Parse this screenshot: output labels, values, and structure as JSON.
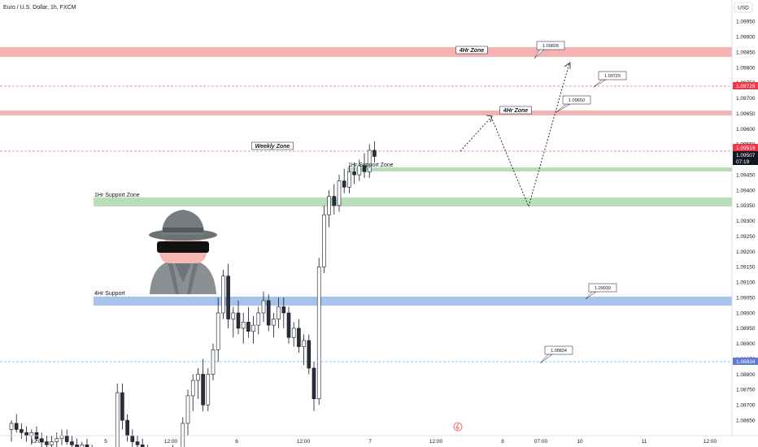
{
  "header": {
    "title": "Euro / U.S. Dollar, 1h, FXCM",
    "currency_button": "USD"
  },
  "colors": {
    "bull": "#ffffff",
    "bear": "#2a2e39",
    "wick": "#131722",
    "red_zone": "#ef9a9a",
    "green_zone": "#a5d6a7",
    "blue_zone": "#90b4e6",
    "red_line": "#e57373",
    "blue_line": "#64b5f6",
    "tag_red": "#f23645",
    "tag_blue": "#5b7bd5",
    "tag_black": "#131722"
  },
  "chart_data": {
    "type": "candlestick",
    "symbol": "Euro / U.S. Dollar, 1h, FXCM",
    "ylim": [
      1.086,
      1.1002
    ],
    "y_ticks": [
      "1.09950",
      "1.09900",
      "1.09850",
      "1.09800",
      "1.09750",
      "1.09700",
      "1.09650",
      "1.09600",
      "1.09550",
      "1.09500",
      "1.09450",
      "1.09400",
      "1.09350",
      "1.09300",
      "1.09250",
      "1.09200",
      "1.09150",
      "1.09100",
      "1.09050",
      "1.09000",
      "1.08950",
      "1.08900",
      "1.08850",
      "1.08800",
      "1.08750",
      "1.08700",
      "1.08650"
    ],
    "x_ticks": [
      "12:00",
      "5",
      "12:00",
      "6",
      "12:00",
      "7",
      "12:00",
      "8",
      "07:00",
      "10",
      "11",
      "12:00"
    ],
    "candles": [
      [
        1.0862,
        1.0865,
        1.0858,
        1.0864
      ],
      [
        1.0864,
        1.0867,
        1.0861,
        1.0862
      ],
      [
        1.0862,
        1.0864,
        1.0859,
        1.0861
      ],
      [
        1.0861,
        1.0863,
        1.0858,
        1.086
      ],
      [
        1.086,
        1.0862,
        1.0857,
        1.0861
      ],
      [
        1.0861,
        1.0863,
        1.0858,
        1.0859
      ],
      [
        1.0859,
        1.0861,
        1.0856,
        1.0858
      ],
      [
        1.0858,
        1.086,
        1.0855,
        1.0857
      ],
      [
        1.0857,
        1.086,
        1.0855,
        1.0858
      ],
      [
        1.0858,
        1.0861,
        1.0856,
        1.0859
      ],
      [
        1.0859,
        1.0862,
        1.0857,
        1.086
      ],
      [
        1.086,
        1.0862,
        1.0857,
        1.0858
      ],
      [
        1.0858,
        1.086,
        1.0855,
        1.0857
      ],
      [
        1.0857,
        1.0859,
        1.0854,
        1.0856
      ],
      [
        1.0856,
        1.0858,
        1.0853,
        1.0857
      ],
      [
        1.0857,
        1.0859,
        1.0854,
        1.0855
      ],
      [
        1.0855,
        1.0857,
        1.0852,
        1.0854
      ],
      [
        1.0854,
        1.0856,
        1.0851,
        1.0853
      ],
      [
        1.0853,
        1.0855,
        1.085,
        1.0852
      ],
      [
        1.0852,
        1.0854,
        1.085,
        1.0853
      ],
      [
        1.0853,
        1.0855,
        1.0851,
        1.0854
      ],
      [
        1.0854,
        1.0877,
        1.0852,
        1.0874
      ],
      [
        1.0874,
        1.0877,
        1.0862,
        1.0865
      ],
      [
        1.0865,
        1.0867,
        1.0858,
        1.086
      ],
      [
        1.086,
        1.0862,
        1.0856,
        1.0858
      ],
      [
        1.0858,
        1.086,
        1.0855,
        1.0857
      ],
      [
        1.0857,
        1.0859,
        1.0854,
        1.0855
      ],
      [
        1.0855,
        1.0857,
        1.0852,
        1.0853
      ],
      [
        1.0853,
        1.0855,
        1.0851,
        1.0852
      ],
      [
        1.0852,
        1.0854,
        1.085,
        1.0853
      ],
      [
        1.0853,
        1.0856,
        1.0851,
        1.0854
      ],
      [
        1.0854,
        1.0856,
        1.0852,
        1.0855
      ],
      [
        1.0855,
        1.0857,
        1.0853,
        1.0854
      ],
      [
        1.0854,
        1.0856,
        1.0852,
        1.0855
      ],
      [
        1.0855,
        1.0866,
        1.0853,
        1.0864
      ],
      [
        1.0864,
        1.0875,
        1.086,
        1.0873
      ],
      [
        1.0873,
        1.088,
        1.0868,
        1.0878
      ],
      [
        1.0878,
        1.0882,
        1.0872,
        1.088
      ],
      [
        1.088,
        1.0885,
        1.0868,
        1.087
      ],
      [
        1.087,
        1.0882,
        1.0868,
        1.088
      ],
      [
        1.088,
        1.089,
        1.0878,
        1.0888
      ],
      [
        1.0888,
        1.0905,
        1.0884,
        1.09
      ],
      [
        1.09,
        1.0914,
        1.0898,
        1.0912
      ],
      [
        1.0912,
        1.0916,
        1.0895,
        1.0898
      ],
      [
        1.0898,
        1.0902,
        1.0892,
        1.09
      ],
      [
        1.09,
        1.0904,
        1.0893,
        1.0895
      ],
      [
        1.0895,
        1.09,
        1.089,
        1.0897
      ],
      [
        1.0897,
        1.0902,
        1.0892,
        1.0894
      ],
      [
        1.0894,
        1.0899,
        1.089,
        1.0896
      ],
      [
        1.0896,
        1.0902,
        1.0893,
        1.09
      ],
      [
        1.09,
        1.0907,
        1.0897,
        1.0904
      ],
      [
        1.0904,
        1.0906,
        1.0894,
        1.0896
      ],
      [
        1.0896,
        1.09,
        1.0892,
        1.0898
      ],
      [
        1.0898,
        1.0905,
        1.0895,
        1.0902
      ],
      [
        1.0902,
        1.0905,
        1.0895,
        1.09
      ],
      [
        1.09,
        1.0902,
        1.089,
        1.0892
      ],
      [
        1.0892,
        1.0897,
        1.0889,
        1.0895
      ],
      [
        1.0895,
        1.0898,
        1.0887,
        1.0889
      ],
      [
        1.0889,
        1.0893,
        1.0883,
        1.0891
      ],
      [
        1.0891,
        1.0893,
        1.088,
        1.0882
      ],
      [
        1.0882,
        1.0884,
        1.0868,
        1.0872
      ],
      [
        1.0872,
        1.0918,
        1.087,
        1.0915
      ],
      [
        1.0915,
        1.0935,
        1.0913,
        1.0932
      ],
      [
        1.0932,
        1.094,
        1.0928,
        1.0938
      ],
      [
        1.0938,
        1.0942,
        1.0932,
        1.0935
      ],
      [
        1.0935,
        1.0945,
        1.0933,
        1.0943
      ],
      [
        1.0943,
        1.0947,
        1.0939,
        1.0941
      ],
      [
        1.0941,
        1.0948,
        1.0939,
        1.0946
      ],
      [
        1.0946,
        1.0949,
        1.0942,
        1.0945
      ],
      [
        1.0945,
        1.095,
        1.0943,
        1.0948
      ],
      [
        1.0948,
        1.0952,
        1.0944,
        1.0946
      ],
      [
        1.0946,
        1.0955,
        1.0944,
        1.0953
      ],
      [
        1.0953,
        1.0956,
        1.0949,
        1.0951
      ]
    ]
  },
  "zones": [
    {
      "label": "4Hr Zone",
      "style": "italic"
    },
    {
      "label": "4Hr Zone",
      "style": "italic"
    },
    {
      "label": "Weekly Zone",
      "style": "italic"
    },
    {
      "label": "1Hr Support Zone",
      "style": "plain"
    },
    {
      "label": "1Hr Support Zone",
      "style": "plain"
    },
    {
      "label": "4Hr Support",
      "style": "plain"
    }
  ],
  "callouts": [
    "1.09828",
    "1.09729",
    "1.09650",
    "1.09039",
    "1.08834"
  ],
  "price_tags": [
    {
      "text": "1.09729",
      "color": "#f23645"
    },
    {
      "text": "1.09519",
      "color": "#f23645"
    },
    {
      "text": "1.09507",
      "color": "#131722"
    },
    {
      "text": "07:19",
      "color": "#131722"
    },
    {
      "text": "1.08834",
      "color": "#5b7bd5"
    }
  ]
}
